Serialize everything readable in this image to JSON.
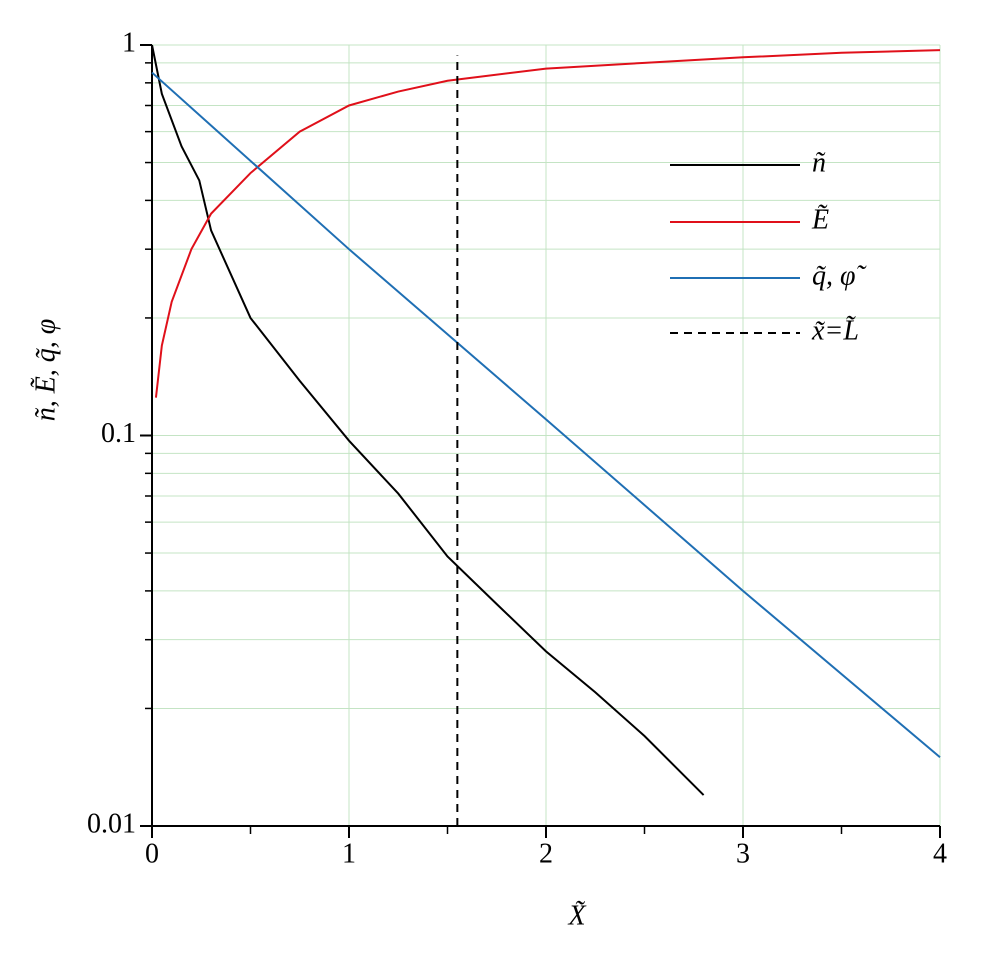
{
  "chart_data": {
    "type": "line",
    "xlabel": "X̃",
    "ylabel": "ñ, Ẽ, q̃, φ",
    "xlim": [
      0,
      4
    ],
    "xticks": [
      0,
      1,
      2,
      3,
      4
    ],
    "xminor_ticks": [
      0.5,
      1.5,
      2.5,
      3.5
    ],
    "ylim": [
      0.01,
      1
    ],
    "yticks": [
      0.01,
      0.1,
      1
    ],
    "yminor_ticks": [
      0.02,
      0.03,
      0.04,
      0.05,
      0.06,
      0.07,
      0.08,
      0.09,
      0.2,
      0.3,
      0.4,
      0.5,
      0.6,
      0.7,
      0.8,
      0.9
    ],
    "yscale": "log",
    "grid": true,
    "grid_color": "#c4e4c4",
    "series": [
      {
        "name": "ñ",
        "color": "#000000",
        "dash": false,
        "x": [
          0,
          0.05,
          0.15,
          0.24,
          0.3,
          0.5,
          0.75,
          1,
          1.25,
          1.5,
          1.75,
          2,
          2.25,
          2.5,
          2.8
        ],
        "values": [
          1,
          0.75,
          0.55,
          0.45,
          0.335,
          0.2,
          0.138,
          0.097,
          0.071,
          0.049,
          0.037,
          0.028,
          0.022,
          0.017,
          0.012
        ]
      },
      {
        "name": "Ẽ",
        "color": "#e0101a",
        "dash": false,
        "x": [
          0.02,
          0.05,
          0.1,
          0.2,
          0.3,
          0.5,
          0.75,
          1,
          1.25,
          1.5,
          2,
          2.5,
          3,
          3.5,
          4
        ],
        "values": [
          0.125,
          0.17,
          0.22,
          0.3,
          0.37,
          0.47,
          0.6,
          0.7,
          0.76,
          0.81,
          0.87,
          0.9,
          0.93,
          0.955,
          0.97
        ]
      },
      {
        "name": "q̃, φ̃",
        "color": "#1f6fb4",
        "dash": false,
        "x": [
          0,
          1,
          2,
          3,
          4
        ],
        "values": [
          0.85,
          0.3,
          0.11,
          0.04,
          0.015
        ]
      },
      {
        "name": "x̃=L̃",
        "color": "#000000",
        "dash": true,
        "x": [
          1.55,
          1.55
        ],
        "values": [
          0.01,
          0.94
        ]
      }
    ]
  }
}
